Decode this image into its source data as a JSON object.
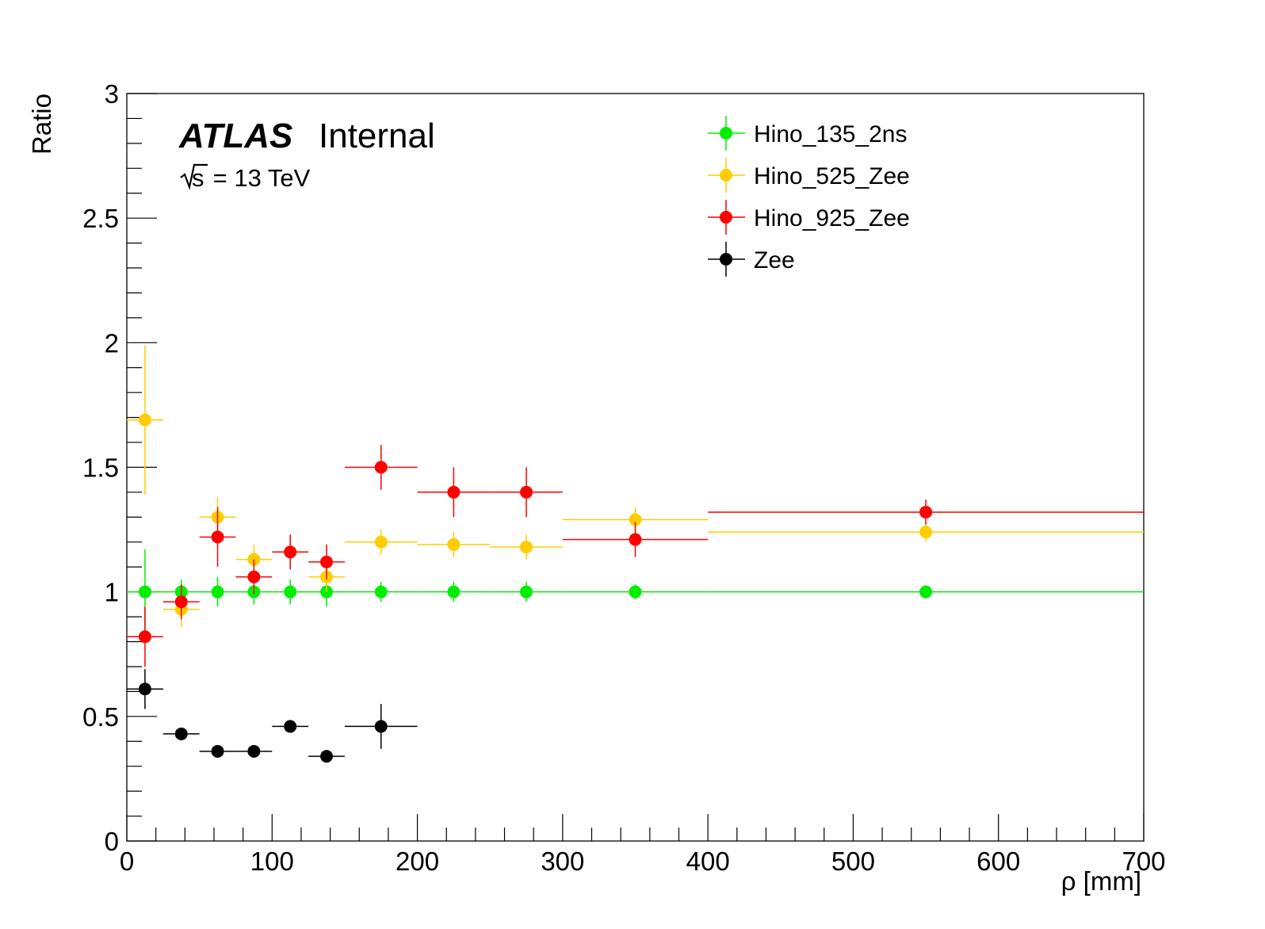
{
  "chart_data": {
    "type": "scatter",
    "xlabel": "ρ [mm]",
    "ylabel": "Ratio",
    "xlim": [
      0,
      700
    ],
    "ylim": [
      0,
      3
    ],
    "x_ticks": [
      "0",
      "100",
      "200",
      "300",
      "400",
      "500",
      "600",
      "700"
    ],
    "y_ticks": [
      "0",
      "0.5",
      "1",
      "1.5",
      "2",
      "2.5",
      "3"
    ],
    "annotation": {
      "experiment": "ATLAS",
      "status": "Internal",
      "energy_prefix": "s",
      "energy_value": " = 13 TeV"
    },
    "legend_position": "top-right",
    "bins": [
      [
        0,
        25
      ],
      [
        25,
        50
      ],
      [
        50,
        75
      ],
      [
        75,
        100
      ],
      [
        100,
        125
      ],
      [
        125,
        150
      ],
      [
        150,
        200
      ],
      [
        200,
        250
      ],
      [
        250,
        300
      ],
      [
        300,
        400
      ],
      [
        400,
        700
      ]
    ],
    "series": [
      {
        "name": "Hino_135_2ns",
        "color": "#00ee00",
        "x": [
          12.5,
          37.5,
          62.5,
          87.5,
          112.5,
          137.5,
          175,
          225,
          275,
          350,
          550
        ],
        "y": [
          1.0,
          1.0,
          1.0,
          1.0,
          1.0,
          1.0,
          1.0,
          1.0,
          1.0,
          1.0,
          1.0
        ],
        "yerr": [
          0.17,
          0.05,
          0.06,
          0.05,
          0.05,
          0.06,
          0.04,
          0.04,
          0.04,
          0.03,
          0.02
        ]
      },
      {
        "name": "Hino_525_Zee",
        "color": "#ffcc00",
        "x": [
          12.5,
          37.5,
          62.5,
          87.5,
          112.5,
          137.5,
          175,
          225,
          275,
          350,
          550
        ],
        "y": [
          1.69,
          0.93,
          1.3,
          1.13,
          1.16,
          1.06,
          1.2,
          1.19,
          1.18,
          1.29,
          1.24
        ],
        "yerr": [
          0.3,
          0.07,
          0.08,
          0.06,
          0.06,
          0.06,
          0.05,
          0.05,
          0.05,
          0.05,
          0.04
        ]
      },
      {
        "name": "Hino_925_Zee",
        "color": "#ff0000",
        "x": [
          12.5,
          37.5,
          62.5,
          87.5,
          112.5,
          137.5,
          175,
          225,
          275,
          350,
          550
        ],
        "y": [
          0.82,
          0.96,
          1.22,
          1.06,
          1.16,
          1.12,
          1.5,
          1.4,
          1.4,
          1.21,
          1.32
        ],
        "yerr": [
          0.12,
          0.07,
          0.12,
          0.07,
          0.07,
          0.07,
          0.09,
          0.1,
          0.1,
          0.07,
          0.05
        ]
      },
      {
        "name": "Zee",
        "color": "#000000",
        "x": [
          12.5,
          37.5,
          62.5,
          87.5,
          112.5,
          137.5,
          175
        ],
        "y": [
          0.61,
          0.43,
          0.36,
          0.36,
          0.46,
          0.34,
          0.46
        ],
        "yerr": [
          0.08,
          0.02,
          0.02,
          0.02,
          0.02,
          0.02,
          0.09
        ]
      }
    ]
  }
}
